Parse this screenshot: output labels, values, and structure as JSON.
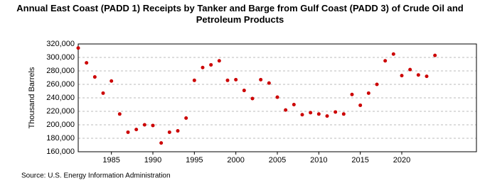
{
  "chart_data": {
    "type": "scatter",
    "title": "Annual East Coast (PADD 1) Receipts by Tanker and Barge from Gulf Coast (PADD 3) of Crude Oil and Petroleum Products",
    "y_label": "Thousand Barrels",
    "source": "Source: U.S. Energy Information Administration",
    "color": "#cc0000",
    "x": [
      1981,
      1982,
      1983,
      1984,
      1985,
      1986,
      1987,
      1988,
      1989,
      1990,
      1991,
      1992,
      1993,
      1994,
      1995,
      1996,
      1997,
      1998,
      1999,
      2000,
      2001,
      2002,
      2003,
      2004,
      2005,
      2006,
      2007,
      2008,
      2009,
      2010,
      2011,
      2012,
      2013,
      2014,
      2015,
      2016,
      2017,
      2018,
      2019,
      2020,
      2021,
      2022,
      2023,
      2024
    ],
    "values": [
      314000,
      292000,
      271000,
      247000,
      265000,
      216000,
      189000,
      193000,
      200000,
      199000,
      173000,
      189000,
      191000,
      210000,
      266000,
      285000,
      289000,
      295000,
      266000,
      267000,
      251000,
      239000,
      267000,
      262000,
      241000,
      222000,
      230000,
      215000,
      218000,
      216000,
      213000,
      219000,
      216000,
      245000,
      229000,
      247000,
      260000,
      295000,
      305000,
      273000,
      282000,
      274000,
      272000,
      303000
    ],
    "xlim": [
      1981,
      2029
    ],
    "ylim": [
      160000,
      320000
    ],
    "xticks": [
      1985,
      1990,
      1995,
      2000,
      2005,
      2010,
      2015,
      2020
    ],
    "yticks": [
      {
        "value": 160000,
        "label": "160,000"
      },
      {
        "value": 180000,
        "label": "180,000"
      },
      {
        "value": 200000,
        "label": "200,000"
      },
      {
        "value": 220000,
        "label": "220,000"
      },
      {
        "value": 240000,
        "label": "240,000"
      },
      {
        "value": 260000,
        "label": "260,000"
      },
      {
        "value": 280000,
        "label": "280,000"
      },
      {
        "value": 300000,
        "label": "300,000"
      },
      {
        "value": 320000,
        "label": "320,000"
      }
    ],
    "grid": true
  }
}
